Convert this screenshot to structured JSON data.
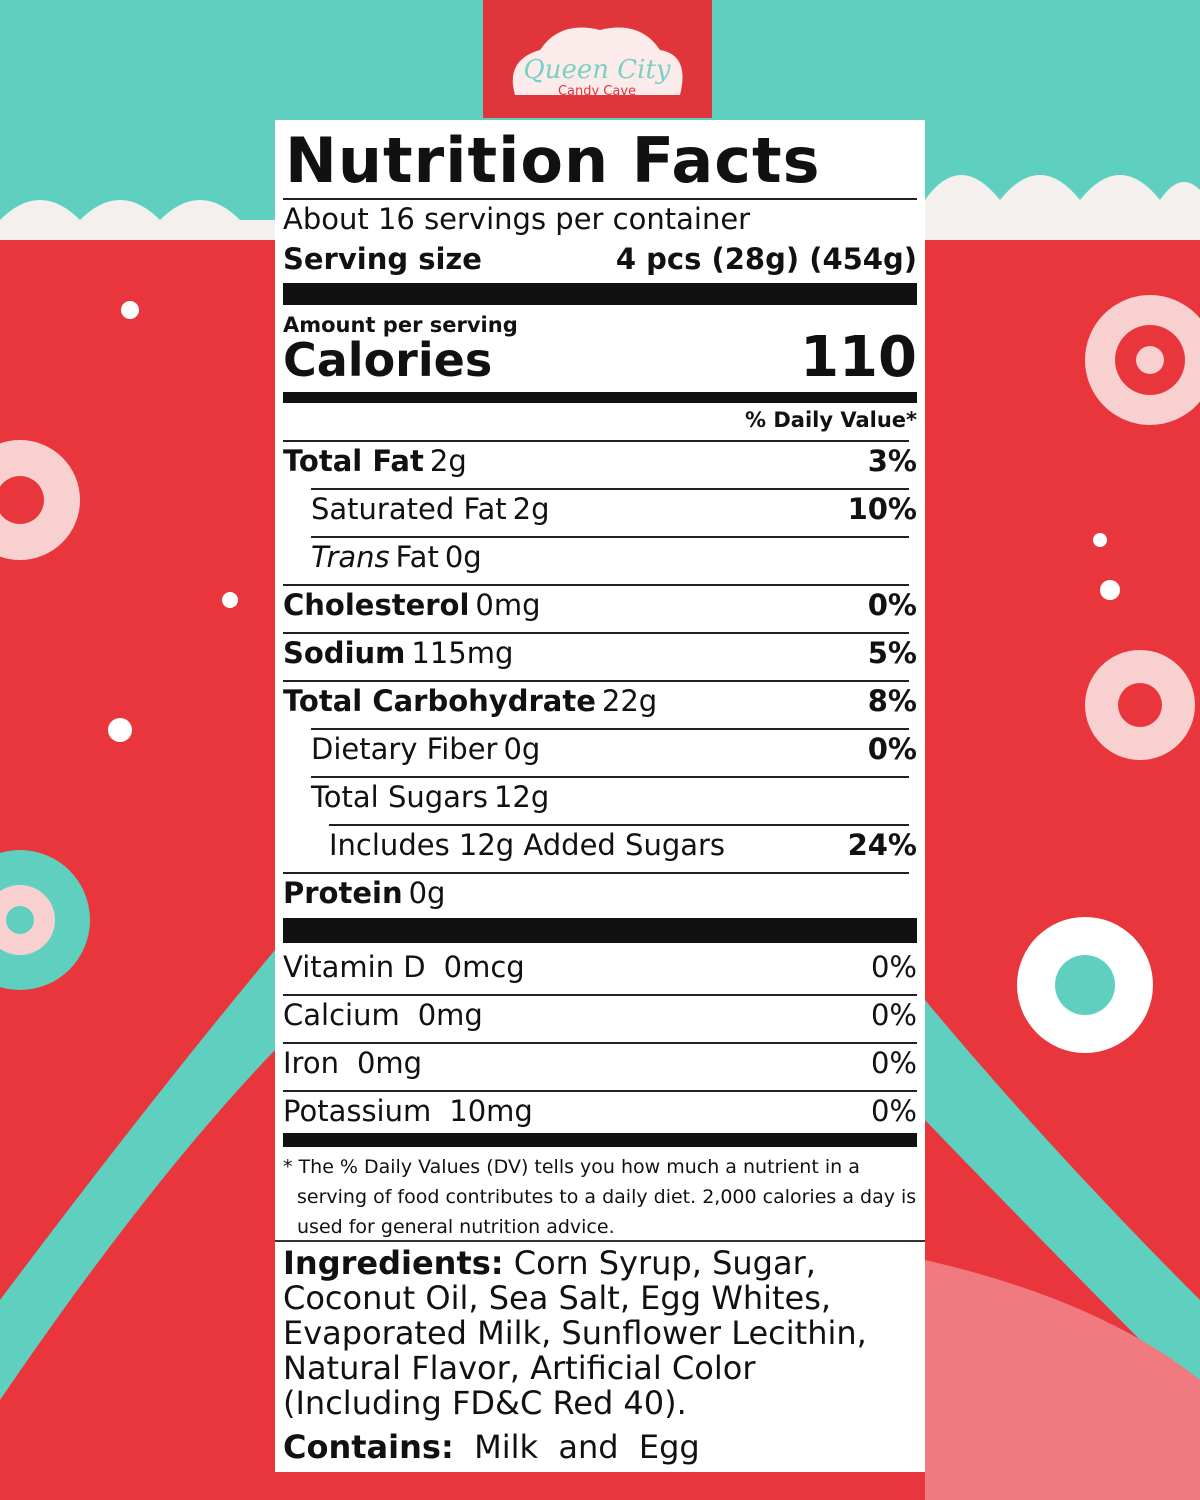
{
  "brand": {
    "name": "Queen City",
    "tagline": "Candy Cave"
  },
  "label": {
    "title": "Nutrition Facts",
    "servings": "About 16 servings per container",
    "serving_size_label": "Serving size",
    "serving_size": "4 pcs (28g) (454g)",
    "amount_per_serving": "Amount per serving",
    "calories_label": "Calories",
    "calories": "110",
    "daily_value_header": "% Daily Value*",
    "nutrients": [
      {
        "name": "Total Fat",
        "amount": "2g",
        "dv": "3%",
        "bold": true,
        "indent": 0
      },
      {
        "name": "Saturated Fat",
        "amount": "2g",
        "dv": "10%",
        "bold": false,
        "indent": 1
      },
      {
        "prefix": "Trans",
        "name": "Fat",
        "amount": "0g",
        "bold": false,
        "indent": 1
      },
      {
        "name": "Cholesterol",
        "amount": "0mg",
        "dv": "0%",
        "bold": true,
        "indent": 0
      },
      {
        "name": "Sodium",
        "amount": "115mg",
        "dv": "5%",
        "bold": true,
        "indent": 0
      },
      {
        "name": "Total Carbohydrate",
        "amount": "22g",
        "dv": "8%",
        "bold": true,
        "indent": 0
      },
      {
        "name": "Dietary Fiber",
        "amount": "0g",
        "dv": "0%",
        "bold": false,
        "indent": 1
      },
      {
        "name": "Total Sugars",
        "amount": "12g",
        "bold": false,
        "indent": 1
      },
      {
        "name": "Includes 12g Added Sugars",
        "dv": "24%",
        "bold": false,
        "indent": 2
      },
      {
        "name": "Protein",
        "amount": "0g",
        "bold": true,
        "indent": 0
      }
    ],
    "vitamins": [
      {
        "name": "Vitamin D",
        "amount": "0mcg",
        "dv": "0%"
      },
      {
        "name": "Calcium",
        "amount": "0mg",
        "dv": "0%"
      },
      {
        "name": "Iron",
        "amount": "0mg",
        "dv": "0%"
      },
      {
        "name": "Potassium",
        "amount": "10mg",
        "dv": "0%"
      }
    ],
    "footnote": "* The % Daily Values (DV) tells you how much a nutrient in a serving of food contributes to a daily diet. 2,000 calories a day is used for general nutrition advice."
  },
  "ingredients": {
    "label": "Ingredients:",
    "text": "Corn Syrup, Sugar, Coconut Oil, Sea Salt, Egg Whites, Evaporated Milk, Sunflower Lecithin, Natural Flavor, Artificial Color (Including FD&C Red 40).",
    "contains_label": "Contains:",
    "contains": "Milk  and  Egg"
  }
}
